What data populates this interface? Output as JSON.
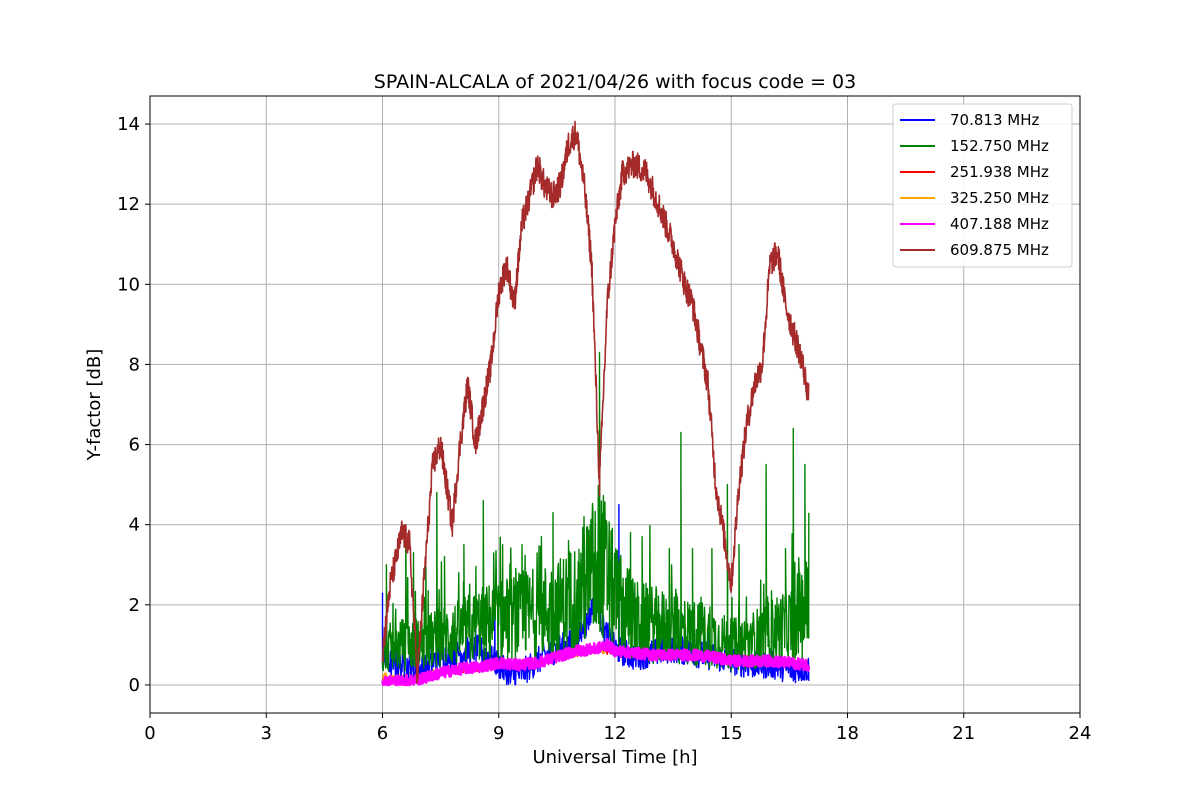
{
  "chart_data": {
    "type": "line",
    "title": "SPAIN-ALCALA of 2021/04/26 with focus code = 03",
    "xlabel": "Universal Time [h]",
    "ylabel": "Y-factor [dB]",
    "xlim": [
      0,
      24
    ],
    "ylim": [
      -0.7,
      14.7
    ],
    "xticks": [
      0,
      3,
      6,
      9,
      12,
      15,
      18,
      21,
      24
    ],
    "yticks": [
      0,
      2,
      4,
      6,
      8,
      10,
      12,
      14
    ],
    "grid": true,
    "legend_position": "top-right",
    "series": [
      {
        "name": " 70.813 MHz",
        "color": "#0000ff",
        "x": [
          6.0,
          6.5,
          7.0,
          7.5,
          8.0,
          8.5,
          9.0,
          9.3,
          9.6,
          10.0,
          10.5,
          11.0,
          11.3,
          11.5,
          11.7,
          12.0,
          12.5,
          13.0,
          13.5,
          14.0,
          14.5,
          15.0,
          15.5,
          16.0,
          16.5,
          17.0
        ],
        "values": [
          0.6,
          0.5,
          0.4,
          0.7,
          0.8,
          0.9,
          0.5,
          0.2,
          0.3,
          0.6,
          0.9,
          1.1,
          1.6,
          2.2,
          1.4,
          0.9,
          0.7,
          0.8,
          0.9,
          0.8,
          0.7,
          0.6,
          0.5,
          0.5,
          0.4,
          0.4
        ],
        "spikes": [
          [
            6.0,
            2.3
          ],
          [
            6.8,
            0.0
          ],
          [
            8.4,
            2.0
          ],
          [
            8.9,
            2.4
          ],
          [
            9.3,
            0.05
          ],
          [
            11.5,
            2.8
          ],
          [
            12.1,
            4.5
          ],
          [
            14.4,
            1.3
          ],
          [
            16.6,
            0.1
          ],
          [
            17.0,
            0.1
          ]
        ]
      },
      {
        "name": "152.750 MHz",
        "color": "#008000",
        "x": [
          6.0,
          6.5,
          7.0,
          7.5,
          8.0,
          8.5,
          9.0,
          9.5,
          10.0,
          10.5,
          11.0,
          11.3,
          11.6,
          12.0,
          12.5,
          13.0,
          13.5,
          14.0,
          14.5,
          15.0,
          15.5,
          16.0,
          16.5,
          17.0
        ],
        "values": [
          0.9,
          1.0,
          1.0,
          1.2,
          1.3,
          1.5,
          1.6,
          1.7,
          1.8,
          1.9,
          2.2,
          2.6,
          3.2,
          2.2,
          1.6,
          1.5,
          1.4,
          1.3,
          1.2,
          1.0,
          1.1,
          1.3,
          1.5,
          2.0
        ],
        "spikes": [
          [
            6.1,
            3.0
          ],
          [
            6.6,
            4.0
          ],
          [
            6.8,
            3.3
          ],
          [
            7.4,
            4.8
          ],
          [
            7.6,
            3.2
          ],
          [
            8.1,
            3.5
          ],
          [
            8.6,
            4.6
          ],
          [
            9.1,
            3.5
          ],
          [
            9.6,
            3.5
          ],
          [
            10.1,
            3.7
          ],
          [
            10.4,
            4.3
          ],
          [
            10.8,
            3.6
          ],
          [
            11.2,
            4.2
          ],
          [
            11.6,
            8.3
          ],
          [
            11.9,
            3.6
          ],
          [
            12.4,
            3.8
          ],
          [
            12.7,
            3.7
          ],
          [
            13.4,
            3.4
          ],
          [
            13.7,
            6.3
          ],
          [
            14.0,
            3.4
          ],
          [
            14.5,
            3.4
          ],
          [
            14.9,
            5.0
          ],
          [
            15.2,
            3.5
          ],
          [
            15.9,
            5.5
          ],
          [
            16.4,
            3.4
          ],
          [
            16.6,
            6.4
          ],
          [
            16.9,
            5.5
          ],
          [
            17.0,
            4.3
          ]
        ]
      },
      {
        "name": "251.938 MHz",
        "color": "#ff0000",
        "x": [
          6.0,
          6.5,
          7.0,
          7.5,
          8.0,
          8.5,
          9.0,
          9.5,
          10.0,
          10.5,
          11.0,
          11.5,
          12.0,
          12.5,
          13.0,
          13.5,
          14.0,
          14.5,
          15.0,
          15.5,
          16.0,
          16.5,
          17.0
        ],
        "values": [
          0.15,
          0.15,
          0.2,
          0.3,
          0.35,
          0.4,
          0.45,
          0.5,
          0.55,
          0.65,
          0.75,
          0.85,
          0.8,
          0.75,
          0.8,
          0.85,
          0.8,
          0.7,
          0.65,
          0.6,
          0.55,
          0.5,
          0.5
        ]
      },
      {
        "name": "325.250 MHz",
        "color": "#ffa500",
        "x": [
          6.0,
          6.5,
          7.0,
          7.5,
          8.0,
          8.5,
          9.0,
          9.5,
          10.0,
          10.5,
          11.0,
          11.5,
          12.0,
          12.5,
          13.0,
          13.5,
          14.0,
          14.5,
          15.0,
          15.5,
          16.0,
          16.5,
          17.0
        ],
        "values": [
          0.2,
          0.2,
          0.25,
          0.35,
          0.4,
          0.45,
          0.5,
          0.55,
          0.6,
          0.7,
          0.8,
          0.9,
          0.85,
          0.8,
          0.85,
          0.9,
          0.85,
          0.75,
          0.7,
          0.65,
          0.6,
          0.55,
          0.55
        ]
      },
      {
        "name": "407.188 MHz",
        "color": "#ff00ff",
        "x": [
          6.0,
          6.5,
          7.0,
          7.5,
          8.0,
          8.5,
          9.0,
          9.5,
          10.0,
          10.5,
          11.0,
          11.5,
          11.8,
          12.0,
          12.5,
          13.0,
          13.5,
          14.0,
          14.5,
          15.0,
          15.5,
          16.0,
          16.5,
          17.0
        ],
        "values": [
          0.1,
          0.1,
          0.15,
          0.3,
          0.4,
          0.45,
          0.55,
          0.5,
          0.55,
          0.7,
          0.85,
          0.9,
          1.0,
          0.85,
          0.8,
          0.75,
          0.75,
          0.75,
          0.7,
          0.6,
          0.6,
          0.6,
          0.55,
          0.5
        ]
      },
      {
        "name": "609.875 MHz",
        "color": "#a52a2a",
        "x": [
          6.0,
          6.2,
          6.5,
          6.7,
          6.9,
          7.1,
          7.3,
          7.5,
          7.8,
          8.0,
          8.2,
          8.4,
          8.6,
          8.8,
          9.0,
          9.2,
          9.4,
          9.6,
          9.8,
          10.0,
          10.2,
          10.4,
          10.6,
          10.8,
          11.0,
          11.2,
          11.4,
          11.6,
          11.8,
          12.0,
          12.2,
          12.5,
          12.8,
          13.0,
          13.2,
          13.5,
          13.8,
          14.0,
          14.2,
          14.4,
          14.6,
          14.8,
          15.0,
          15.2,
          15.4,
          15.6,
          15.8,
          16.0,
          16.2,
          16.4,
          16.6,
          16.8,
          17.0
        ],
        "values": [
          0.8,
          2.5,
          3.8,
          3.5,
          0.2,
          3.0,
          5.5,
          6.0,
          4.0,
          6.0,
          7.5,
          6.0,
          7.0,
          8.0,
          9.8,
          10.5,
          9.5,
          11.5,
          12.2,
          13.0,
          12.4,
          12.2,
          12.5,
          13.5,
          13.8,
          12.5,
          10.5,
          5.0,
          9.5,
          11.5,
          12.8,
          13.0,
          12.8,
          12.3,
          11.8,
          11.0,
          10.0,
          9.5,
          8.5,
          7.5,
          5.0,
          3.8,
          2.5,
          5.0,
          6.5,
          7.5,
          8.0,
          10.5,
          10.8,
          9.5,
          8.8,
          8.2,
          7.2
        ]
      }
    ]
  }
}
